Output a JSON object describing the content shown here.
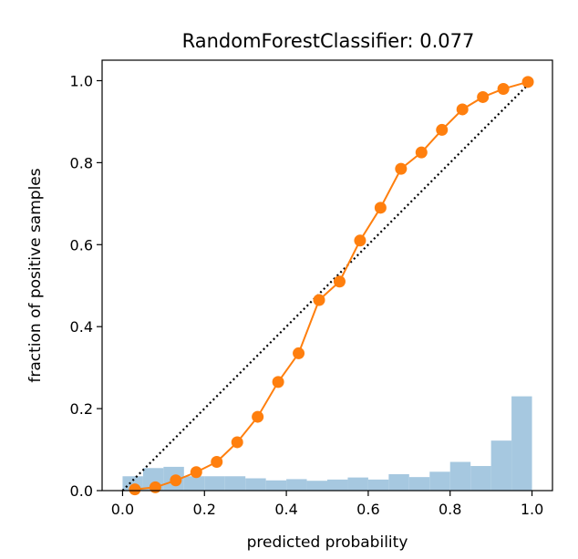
{
  "chart_data": {
    "type": "line",
    "title": "RandomForestClassifier: 0.077",
    "xlabel": "predicted probability",
    "ylabel": "fraction of positive samples",
    "xlim": [
      -0.05,
      1.05
    ],
    "ylim": [
      0,
      1.05
    ],
    "xticks": [
      0.0,
      0.2,
      0.4,
      0.6,
      0.8,
      1.0
    ],
    "xtick_labels": [
      "0.0",
      "0.2",
      "0.4",
      "0.6",
      "0.8",
      "1.0"
    ],
    "yticks": [
      0.0,
      0.2,
      0.4,
      0.6,
      0.8,
      1.0
    ],
    "ytick_labels": [
      "0.0",
      "0.2",
      "0.4",
      "0.6",
      "0.8",
      "1.0"
    ],
    "grid": false,
    "series": [
      {
        "type": "line",
        "marker": "circle",
        "color": "#ff7f0e",
        "x": [
          0.03,
          0.08,
          0.13,
          0.18,
          0.23,
          0.28,
          0.33,
          0.38,
          0.43,
          0.48,
          0.53,
          0.58,
          0.63,
          0.68,
          0.73,
          0.78,
          0.83,
          0.88,
          0.93,
          0.99
        ],
        "y": [
          0.003,
          0.008,
          0.025,
          0.045,
          0.07,
          0.118,
          0.18,
          0.265,
          0.335,
          0.465,
          0.51,
          0.61,
          0.69,
          0.785,
          0.825,
          0.88,
          0.93,
          0.96,
          0.98,
          0.997
        ]
      },
      {
        "type": "line",
        "style": "dotted",
        "color": "#000000",
        "x": [
          0.0,
          1.0
        ],
        "y": [
          0.0,
          1.0
        ]
      },
      {
        "type": "bar",
        "color": "#a6c8e0",
        "bin_edges": [
          0.0,
          0.05,
          0.1,
          0.15,
          0.2,
          0.25,
          0.3,
          0.35,
          0.4,
          0.45,
          0.5,
          0.55,
          0.6,
          0.65,
          0.7,
          0.75,
          0.8,
          0.85,
          0.9,
          0.95,
          1.0
        ],
        "values": [
          0.035,
          0.055,
          0.058,
          0.035,
          0.035,
          0.035,
          0.03,
          0.025,
          0.028,
          0.024,
          0.027,
          0.032,
          0.027,
          0.04,
          0.033,
          0.046,
          0.07,
          0.06,
          0.122,
          0.23
        ]
      }
    ]
  }
}
